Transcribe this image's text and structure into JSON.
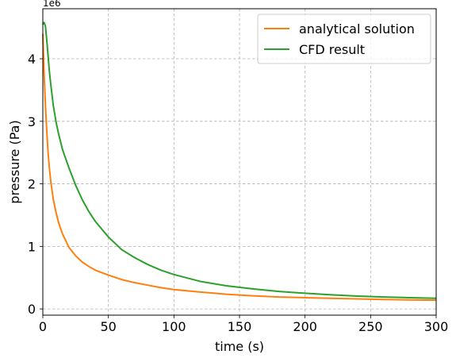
{
  "chart_data": {
    "type": "line",
    "title": "",
    "xlabel": "time (s)",
    "ylabel": "pressure (Pa)",
    "y_offset_label": "1e6",
    "xlim": [
      0,
      300
    ],
    "ylim": [
      -0.1,
      4.8
    ],
    "y_scale_factor": 1000000,
    "xticks": [
      0,
      50,
      100,
      150,
      200,
      250,
      300
    ],
    "yticks": [
      0,
      1,
      2,
      3,
      4
    ],
    "grid": true,
    "legend_position": "top-right",
    "series": [
      {
        "name": "analytical solution",
        "color": "#ff7f0e",
        "x": [
          0,
          1,
          2,
          3,
          4,
          5,
          6,
          8,
          10,
          12,
          15,
          20,
          25,
          30,
          35,
          40,
          50,
          60,
          70,
          80,
          90,
          100,
          120,
          140,
          160,
          180,
          200,
          220,
          240,
          260,
          280,
          300
        ],
        "y": [
          4.4,
          3.75,
          3.25,
          2.85,
          2.5,
          2.25,
          2.05,
          1.75,
          1.55,
          1.38,
          1.2,
          0.98,
          0.85,
          0.75,
          0.68,
          0.62,
          0.54,
          0.47,
          0.42,
          0.38,
          0.34,
          0.31,
          0.27,
          0.235,
          0.21,
          0.19,
          0.18,
          0.17,
          0.16,
          0.15,
          0.145,
          0.14
        ]
      },
      {
        "name": "CFD result",
        "color": "#2ca02c",
        "x": [
          0,
          1,
          2,
          3,
          4,
          5,
          6,
          8,
          10,
          12,
          15,
          20,
          25,
          30,
          35,
          40,
          50,
          60,
          70,
          80,
          90,
          100,
          120,
          140,
          160,
          180,
          200,
          220,
          240,
          260,
          280,
          300
        ],
        "y": [
          4.55,
          4.58,
          4.52,
          4.3,
          4.05,
          3.8,
          3.6,
          3.25,
          3.0,
          2.8,
          2.55,
          2.25,
          1.98,
          1.75,
          1.56,
          1.4,
          1.15,
          0.95,
          0.82,
          0.71,
          0.62,
          0.55,
          0.44,
          0.37,
          0.32,
          0.28,
          0.25,
          0.225,
          0.205,
          0.19,
          0.18,
          0.17
        ]
      }
    ]
  }
}
